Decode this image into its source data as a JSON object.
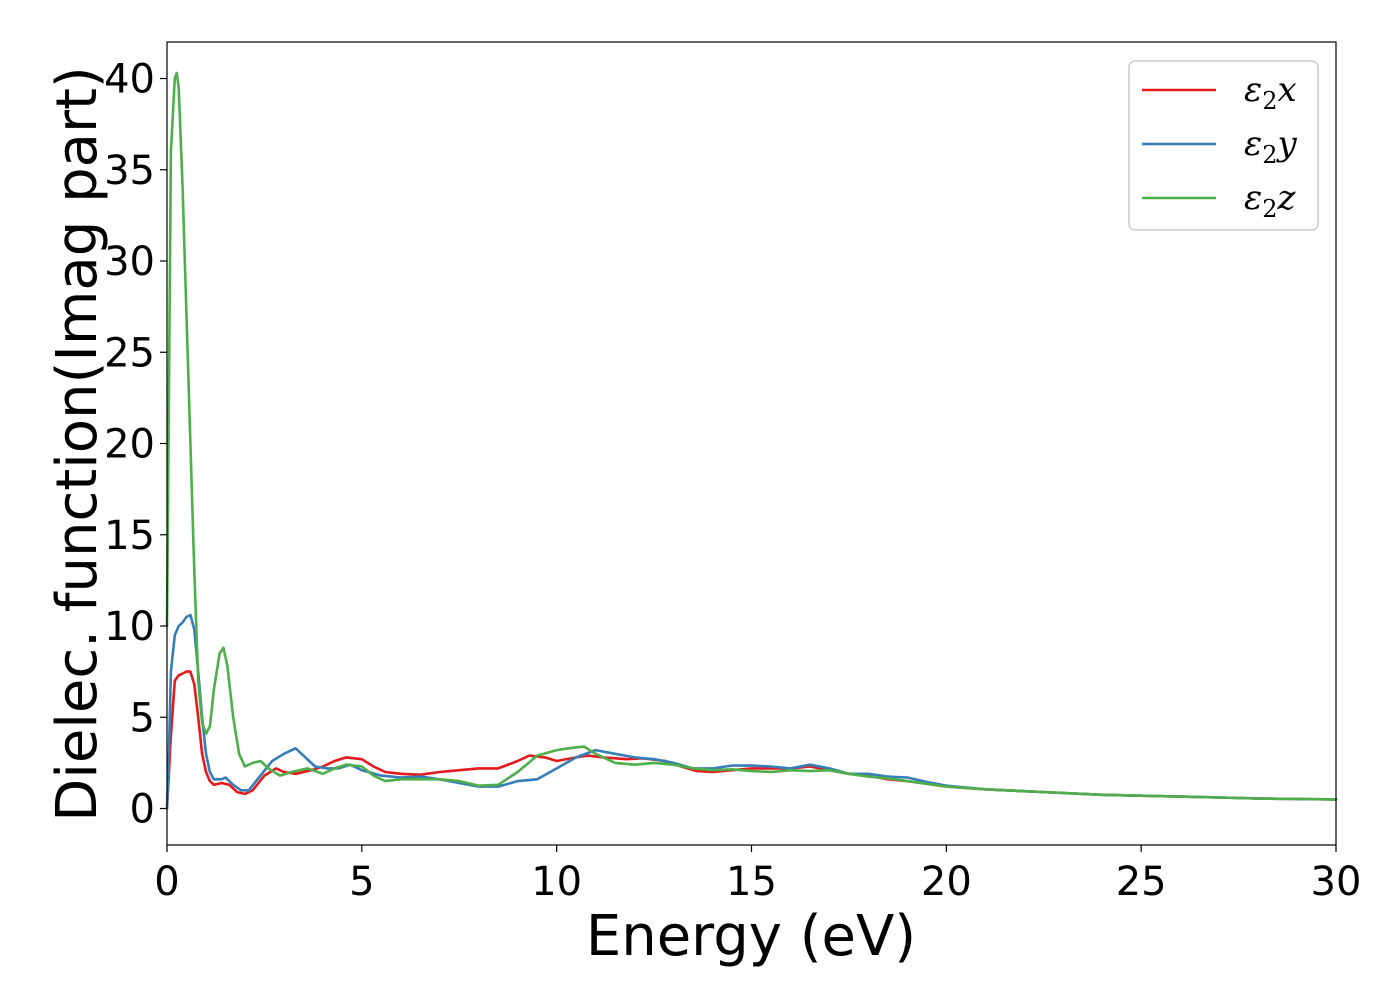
{
  "chart_data": {
    "type": "line",
    "title": "",
    "xlabel": "Energy (eV)",
    "ylabel": "Dielec. function(Imag part)",
    "xlim": [
      0,
      30
    ],
    "ylim": [
      -2,
      42
    ],
    "xticks": [
      "0",
      "5",
      "10",
      "15",
      "20",
      "25",
      "30"
    ],
    "yticks": [
      "0",
      "5",
      "10",
      "15",
      "20",
      "25",
      "30",
      "35",
      "40"
    ],
    "grid": false,
    "legend_position": "top-right",
    "series": [
      {
        "name": "ε2x",
        "label_base": "ε",
        "label_sub": "2",
        "label_var": "x",
        "color": "#e41a1c",
        "points": [
          [
            0,
            0
          ],
          [
            0.1,
            4
          ],
          [
            0.2,
            7
          ],
          [
            0.3,
            7.3
          ],
          [
            0.4,
            7.4
          ],
          [
            0.5,
            7.5
          ],
          [
            0.6,
            7.5
          ],
          [
            0.7,
            6.8
          ],
          [
            0.8,
            5
          ],
          [
            0.9,
            3
          ],
          [
            1.0,
            2
          ],
          [
            1.1,
            1.5
          ],
          [
            1.2,
            1.3
          ],
          [
            1.4,
            1.4
          ],
          [
            1.6,
            1.3
          ],
          [
            1.8,
            0.9
          ],
          [
            2.0,
            0.8
          ],
          [
            2.2,
            1.0
          ],
          [
            2.5,
            1.8
          ],
          [
            2.8,
            2.2
          ],
          [
            3.0,
            2.0
          ],
          [
            3.3,
            1.9
          ],
          [
            3.7,
            2.1
          ],
          [
            4.0,
            2.3
          ],
          [
            4.3,
            2.6
          ],
          [
            4.6,
            2.8
          ],
          [
            5.0,
            2.7
          ],
          [
            5.3,
            2.3
          ],
          [
            5.6,
            2.0
          ],
          [
            6.0,
            1.9
          ],
          [
            6.5,
            1.85
          ],
          [
            7.0,
            2.0
          ],
          [
            7.5,
            2.1
          ],
          [
            8.0,
            2.2
          ],
          [
            8.5,
            2.2
          ],
          [
            9.0,
            2.6
          ],
          [
            9.3,
            2.9
          ],
          [
            9.7,
            2.8
          ],
          [
            10.0,
            2.6
          ],
          [
            10.5,
            2.8
          ],
          [
            10.8,
            2.9
          ],
          [
            11.2,
            2.8
          ],
          [
            11.8,
            2.7
          ],
          [
            12.2,
            2.75
          ],
          [
            12.8,
            2.6
          ],
          [
            13.2,
            2.3
          ],
          [
            13.6,
            2.05
          ],
          [
            14.0,
            2.0
          ],
          [
            14.5,
            2.1
          ],
          [
            15.0,
            2.2
          ],
          [
            15.5,
            2.2
          ],
          [
            16.0,
            2.2
          ],
          [
            16.5,
            2.3
          ],
          [
            17.0,
            2.1
          ],
          [
            17.5,
            1.9
          ],
          [
            18.0,
            1.8
          ],
          [
            18.5,
            1.6
          ],
          [
            19.0,
            1.5
          ],
          [
            19.5,
            1.35
          ],
          [
            20.0,
            1.2
          ],
          [
            21.0,
            1.05
          ],
          [
            22.0,
            0.95
          ],
          [
            23.0,
            0.85
          ],
          [
            24.0,
            0.75
          ],
          [
            25.0,
            0.7
          ],
          [
            26.0,
            0.65
          ],
          [
            27.0,
            0.6
          ],
          [
            28.0,
            0.55
          ],
          [
            29.0,
            0.52
          ],
          [
            30.0,
            0.5
          ]
        ]
      },
      {
        "name": "ε2y",
        "label_base": "ε",
        "label_sub": "2",
        "label_var": "y",
        "color": "#377eb8",
        "points": [
          [
            0,
            0
          ],
          [
            0.05,
            3
          ],
          [
            0.1,
            7.5
          ],
          [
            0.2,
            9.5
          ],
          [
            0.3,
            10
          ],
          [
            0.4,
            10.2
          ],
          [
            0.5,
            10.5
          ],
          [
            0.6,
            10.6
          ],
          [
            0.7,
            9.8
          ],
          [
            0.8,
            7.5
          ],
          [
            0.9,
            5
          ],
          [
            1.0,
            3
          ],
          [
            1.1,
            2
          ],
          [
            1.2,
            1.6
          ],
          [
            1.4,
            1.6
          ],
          [
            1.5,
            1.7
          ],
          [
            1.7,
            1.3
          ],
          [
            1.9,
            1.0
          ],
          [
            2.1,
            1.0
          ],
          [
            2.4,
            1.8
          ],
          [
            2.7,
            2.6
          ],
          [
            3.0,
            3.0
          ],
          [
            3.3,
            3.3
          ],
          [
            3.5,
            2.9
          ],
          [
            3.8,
            2.3
          ],
          [
            4.1,
            2.2
          ],
          [
            4.4,
            2.2
          ],
          [
            4.7,
            2.4
          ],
          [
            5.0,
            2.1
          ],
          [
            5.5,
            1.8
          ],
          [
            6.0,
            1.7
          ],
          [
            6.5,
            1.75
          ],
          [
            7.0,
            1.6
          ],
          [
            7.5,
            1.4
          ],
          [
            8.0,
            1.2
          ],
          [
            8.5,
            1.2
          ],
          [
            9.0,
            1.5
          ],
          [
            9.5,
            1.6
          ],
          [
            10.0,
            2.2
          ],
          [
            10.5,
            2.8
          ],
          [
            11.0,
            3.2
          ],
          [
            11.5,
            3.0
          ],
          [
            12.0,
            2.8
          ],
          [
            12.5,
            2.7
          ],
          [
            13.0,
            2.5
          ],
          [
            13.5,
            2.2
          ],
          [
            14.0,
            2.2
          ],
          [
            14.5,
            2.35
          ],
          [
            15.0,
            2.35
          ],
          [
            15.5,
            2.3
          ],
          [
            16.0,
            2.2
          ],
          [
            16.5,
            2.4
          ],
          [
            17.0,
            2.2
          ],
          [
            17.5,
            1.9
          ],
          [
            18.0,
            1.9
          ],
          [
            18.5,
            1.75
          ],
          [
            19.0,
            1.7
          ],
          [
            19.5,
            1.45
          ],
          [
            20.0,
            1.25
          ],
          [
            21.0,
            1.05
          ],
          [
            22.0,
            0.95
          ],
          [
            23.0,
            0.85
          ],
          [
            24.0,
            0.75
          ],
          [
            25.0,
            0.7
          ],
          [
            26.0,
            0.65
          ],
          [
            27.0,
            0.6
          ],
          [
            28.0,
            0.55
          ],
          [
            29.0,
            0.52
          ],
          [
            30.0,
            0.5
          ]
        ]
      },
      {
        "name": "ε2z",
        "label_base": "ε",
        "label_sub": "2",
        "label_var": "z",
        "color": "#4daf4a",
        "points": [
          [
            0,
            10
          ],
          [
            0.1,
            36
          ],
          [
            0.2,
            40
          ],
          [
            0.25,
            40.3
          ],
          [
            0.3,
            39.5
          ],
          [
            0.4,
            34
          ],
          [
            0.5,
            27
          ],
          [
            0.6,
            20
          ],
          [
            0.7,
            13
          ],
          [
            0.8,
            7
          ],
          [
            0.9,
            4.7
          ],
          [
            1.0,
            4.1
          ],
          [
            1.1,
            4.5
          ],
          [
            1.2,
            6.5
          ],
          [
            1.35,
            8.5
          ],
          [
            1.45,
            8.8
          ],
          [
            1.55,
            7.8
          ],
          [
            1.7,
            5
          ],
          [
            1.85,
            3
          ],
          [
            2.0,
            2.3
          ],
          [
            2.2,
            2.5
          ],
          [
            2.4,
            2.6
          ],
          [
            2.6,
            2.2
          ],
          [
            2.9,
            1.8
          ],
          [
            3.2,
            2.0
          ],
          [
            3.6,
            2.2
          ],
          [
            4.0,
            1.9
          ],
          [
            4.3,
            2.2
          ],
          [
            4.6,
            2.4
          ],
          [
            5.0,
            2.3
          ],
          [
            5.3,
            1.8
          ],
          [
            5.6,
            1.5
          ],
          [
            6.0,
            1.6
          ],
          [
            6.5,
            1.6
          ],
          [
            7.0,
            1.6
          ],
          [
            7.5,
            1.5
          ],
          [
            8.0,
            1.25
          ],
          [
            8.5,
            1.3
          ],
          [
            9.0,
            2.0
          ],
          [
            9.5,
            2.9
          ],
          [
            10.0,
            3.2
          ],
          [
            10.3,
            3.3
          ],
          [
            10.7,
            3.4
          ],
          [
            11.0,
            3.0
          ],
          [
            11.5,
            2.5
          ],
          [
            12.0,
            2.4
          ],
          [
            12.5,
            2.5
          ],
          [
            13.0,
            2.4
          ],
          [
            13.5,
            2.2
          ],
          [
            14.0,
            2.1
          ],
          [
            14.5,
            2.15
          ],
          [
            15.0,
            2.05
          ],
          [
            15.5,
            2.0
          ],
          [
            16.0,
            2.1
          ],
          [
            16.5,
            2.05
          ],
          [
            17.0,
            2.1
          ],
          [
            17.5,
            1.9
          ],
          [
            18.0,
            1.75
          ],
          [
            18.5,
            1.65
          ],
          [
            19.0,
            1.5
          ],
          [
            19.5,
            1.35
          ],
          [
            20.0,
            1.2
          ],
          [
            21.0,
            1.05
          ],
          [
            22.0,
            0.95
          ],
          [
            23.0,
            0.85
          ],
          [
            24.0,
            0.75
          ],
          [
            25.0,
            0.7
          ],
          [
            26.0,
            0.65
          ],
          [
            27.0,
            0.6
          ],
          [
            28.0,
            0.55
          ],
          [
            29.0,
            0.52
          ],
          [
            30.0,
            0.5
          ]
        ]
      }
    ]
  }
}
